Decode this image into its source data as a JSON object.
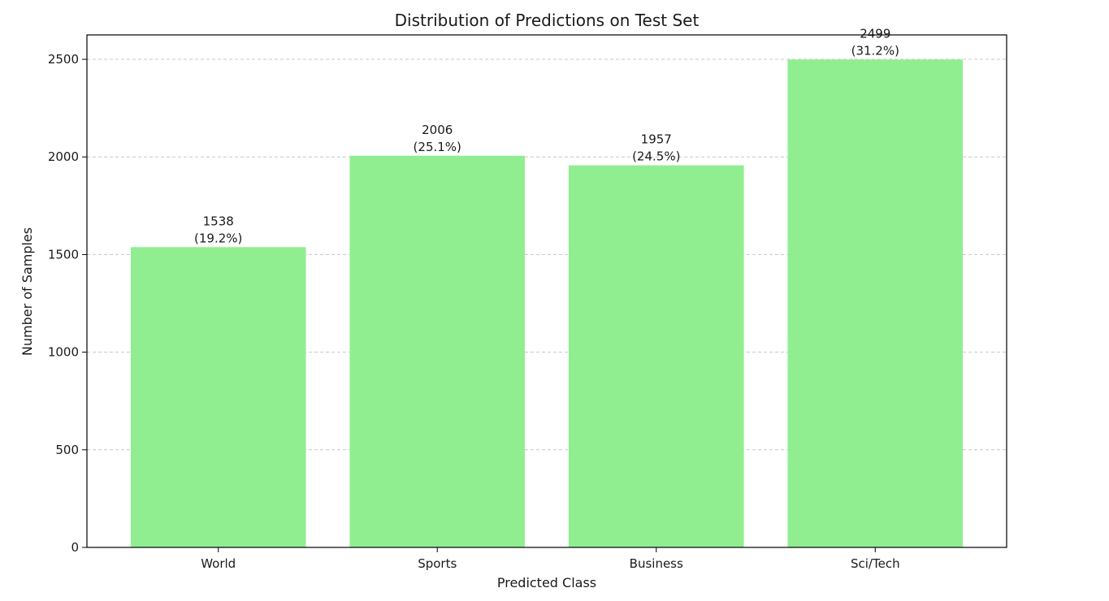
{
  "chart_data": {
    "type": "bar",
    "title": "Distribution of Predictions on Test Set",
    "xlabel": "Predicted Class",
    "ylabel": "Number of Samples",
    "categories": [
      "World",
      "Sports",
      "Business",
      "Sci/Tech"
    ],
    "values": [
      1538,
      2006,
      1957,
      2499
    ],
    "value_labels": [
      "1538\n(19.2%)",
      "2006\n(25.1%)",
      "1957\n(24.5%)",
      "2499\n(31.2%)"
    ],
    "ylim": [
      0,
      2625
    ],
    "yticks": [
      0,
      500,
      1000,
      1500,
      2000,
      2500
    ],
    "grid": "y-dashed",
    "bar_color": "#90EE90",
    "gridline_color": "#c8c8c8",
    "axis_color": "#000000"
  }
}
